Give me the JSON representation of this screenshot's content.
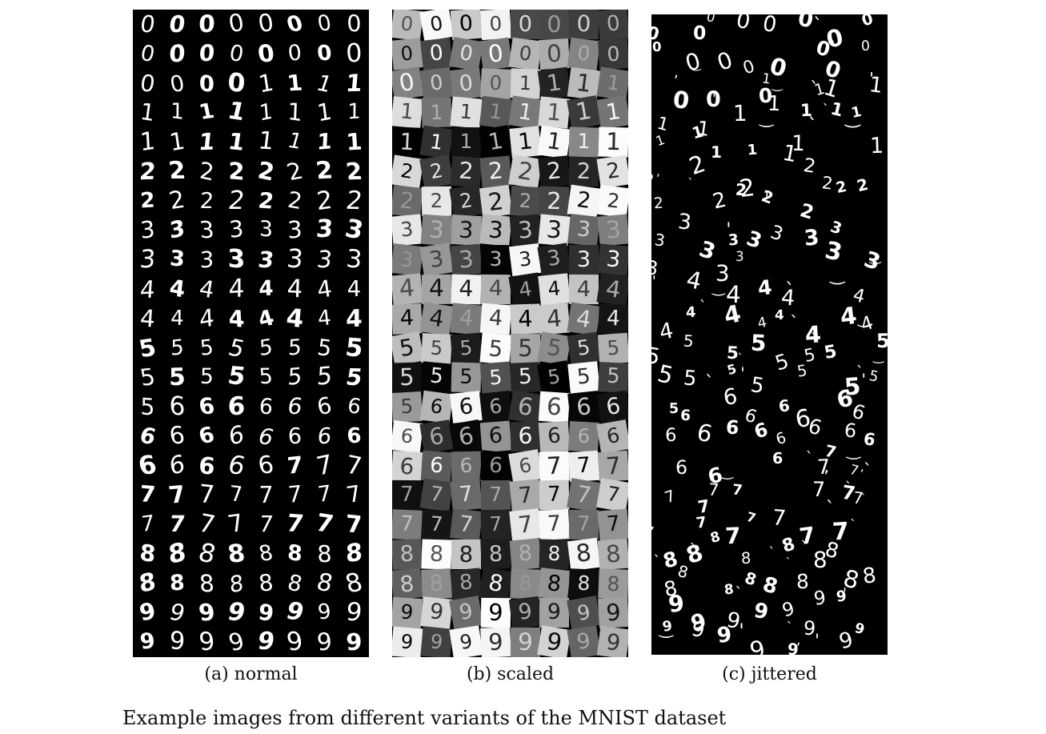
{
  "figure": {
    "subfigures": [
      {
        "id": "normal",
        "label": "(a) normal"
      },
      {
        "id": "scaled",
        "label": "(b) scaled"
      },
      {
        "id": "jittered",
        "label": "(c) jittered"
      }
    ],
    "digit_rows": [
      "00000000",
      "00000000",
      "00001111",
      "11111111",
      "11111111",
      "22222222",
      "22222222",
      "33333333",
      "33333333",
      "44444444",
      "44444444",
      "55555555",
      "55555555",
      "56666666",
      "66666666",
      "66666777",
      "77777777",
      "77777777",
      "88888888",
      "88888888",
      "99999999",
      "99999999"
    ],
    "caption": "Example images from different variants of the MNIST dataset"
  }
}
